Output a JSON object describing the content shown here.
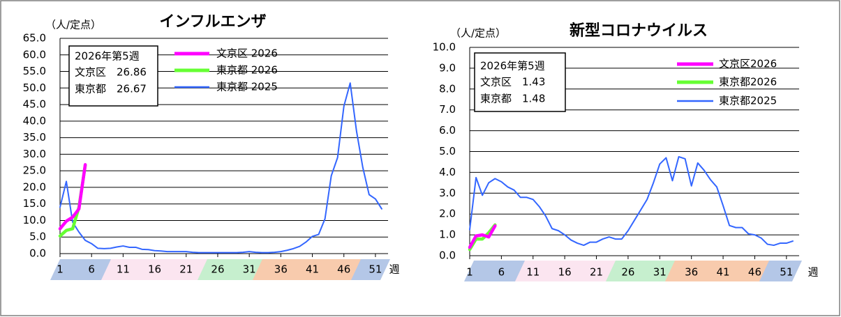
{
  "chart_data": [
    {
      "type": "line",
      "title": "インフルエンザ",
      "y_label": "（人/定点）",
      "x_label": "週",
      "annotation": [
        "2026年第5週",
        "文京区　26.86",
        "東京都　26.67"
      ],
      "xlim": [
        1,
        53
      ],
      "xticks": [
        1,
        6,
        11,
        16,
        21,
        26,
        31,
        36,
        41,
        46,
        51
      ],
      "ylim": [
        0,
        65
      ],
      "yticks": [
        {
          "value": 0,
          "label": "0.0"
        },
        {
          "value": 5,
          "label": "5.0"
        },
        {
          "value": 10,
          "label": "10.0"
        },
        {
          "value": 15,
          "label": "15.0"
        },
        {
          "value": 20,
          "label": "20.0"
        },
        {
          "value": 25,
          "label": "25.0"
        },
        {
          "value": 30,
          "label": "30.0"
        },
        {
          "value": 35,
          "label": "35.0"
        },
        {
          "value": 40,
          "label": "40.0"
        },
        {
          "value": 45,
          "label": "45.0"
        },
        {
          "value": 50,
          "label": "50.0"
        },
        {
          "value": 55,
          "label": "55.0"
        },
        {
          "value": 60,
          "label": "60.0"
        },
        {
          "value": 65,
          "label": "65.0"
        }
      ],
      "grid": true,
      "series": [
        {
          "name": "文京区 2026",
          "color": "#ff00ff",
          "x": [
            1,
            2,
            3,
            4,
            5
          ],
          "values": [
            7.5,
            9.8,
            11.0,
            13.5,
            26.86
          ]
        },
        {
          "name": "東京都 2026",
          "color": "#66ff33",
          "x": [
            1,
            2,
            3,
            4,
            5
          ],
          "values": [
            5.3,
            7.0,
            7.5,
            14.0,
            26.67
          ]
        },
        {
          "name": "東京都 2025",
          "color": "#3366ff",
          "x": [
            1,
            2,
            3,
            4,
            5,
            6,
            7,
            8,
            9,
            10,
            11,
            12,
            13,
            14,
            15,
            16,
            17,
            18,
            19,
            20,
            21,
            22,
            23,
            24,
            25,
            26,
            27,
            28,
            29,
            30,
            31,
            32,
            33,
            34,
            35,
            36,
            37,
            38,
            39,
            40,
            41,
            42,
            43,
            44,
            45,
            46,
            47,
            48,
            49,
            50,
            51,
            52
          ],
          "values": [
            14.0,
            21.8,
            9.5,
            6.5,
            4.0,
            3.0,
            1.6,
            1.5,
            1.6,
            2.0,
            2.3,
            1.9,
            1.9,
            1.3,
            1.2,
            0.9,
            0.8,
            0.6,
            0.6,
            0.6,
            0.6,
            0.4,
            0.3,
            0.3,
            0.3,
            0.3,
            0.3,
            0.3,
            0.3,
            0.4,
            0.6,
            0.4,
            0.3,
            0.3,
            0.4,
            0.6,
            1.0,
            1.5,
            2.2,
            3.5,
            5.2,
            5.8,
            10.5,
            23.5,
            29.0,
            44.5,
            51.5,
            37.0,
            26.0,
            17.8,
            16.5,
            13.5
          ]
        }
      ]
    },
    {
      "type": "line",
      "title": "新型コロナウイルス",
      "y_label": "（人/定点）",
      "x_label": "週",
      "annotation": [
        "2026年第5週",
        "文京区　1.43",
        "東京都　1.48"
      ],
      "xlim": [
        1,
        53
      ],
      "xticks": [
        1,
        6,
        11,
        16,
        21,
        26,
        31,
        36,
        41,
        46,
        51
      ],
      "ylim": [
        0,
        10
      ],
      "yticks": [
        {
          "value": 0,
          "label": "0.0"
        },
        {
          "value": 1,
          "label": "1.0"
        },
        {
          "value": 2,
          "label": "2.0"
        },
        {
          "value": 3,
          "label": "3.0"
        },
        {
          "value": 4,
          "label": "4.0"
        },
        {
          "value": 5,
          "label": "5.0"
        },
        {
          "value": 6,
          "label": "6.0"
        },
        {
          "value": 7,
          "label": "7.0"
        },
        {
          "value": 8,
          "label": "8.0"
        },
        {
          "value": 9,
          "label": "9.0"
        },
        {
          "value": 10,
          "label": "10.0"
        }
      ],
      "grid": true,
      "series": [
        {
          "name": "文京区2026",
          "color": "#ff00ff",
          "x": [
            1,
            2,
            3,
            4,
            5
          ],
          "values": [
            0.4,
            0.95,
            1.0,
            0.9,
            1.43
          ]
        },
        {
          "name": "東京都2026",
          "color": "#66ff33",
          "x": [
            1,
            2,
            3,
            4,
            5
          ],
          "values": [
            0.3,
            0.8,
            0.8,
            1.1,
            1.48
          ]
        },
        {
          "name": "東京都2025",
          "color": "#3366ff",
          "x": [
            1,
            2,
            3,
            4,
            5,
            6,
            7,
            8,
            9,
            10,
            11,
            12,
            13,
            14,
            15,
            16,
            17,
            18,
            19,
            20,
            21,
            22,
            23,
            24,
            25,
            26,
            27,
            28,
            29,
            30,
            31,
            32,
            33,
            34,
            35,
            36,
            37,
            38,
            39,
            40,
            41,
            42,
            43,
            44,
            45,
            46,
            47,
            48,
            49,
            50,
            51,
            52
          ],
          "values": [
            1.25,
            3.75,
            2.9,
            3.5,
            3.7,
            3.55,
            3.3,
            3.15,
            2.8,
            2.8,
            2.7,
            2.35,
            1.9,
            1.3,
            1.2,
            1.0,
            0.75,
            0.6,
            0.5,
            0.65,
            0.65,
            0.8,
            0.9,
            0.8,
            0.8,
            1.2,
            1.7,
            2.2,
            2.7,
            3.5,
            4.4,
            4.7,
            3.6,
            4.75,
            4.65,
            3.35,
            4.45,
            4.1,
            3.65,
            3.3,
            2.4,
            1.45,
            1.35,
            1.35,
            1.05,
            1.0,
            0.85,
            0.55,
            0.5,
            0.6,
            0.6,
            0.7
          ]
        }
      ]
    }
  ]
}
